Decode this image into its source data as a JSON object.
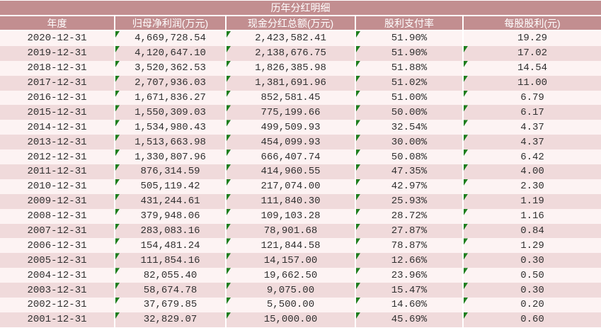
{
  "table": {
    "title": "历年分红明细",
    "columns": [
      {
        "label": "年度"
      },
      {
        "label": "归母净利润(万元)"
      },
      {
        "label": "现金分红总额(万元)"
      },
      {
        "label": "股利支付率"
      },
      {
        "label": "每股股利(元)"
      }
    ],
    "rows": [
      {
        "year": "2020-12-31",
        "net_profit": "4,669,728.54",
        "cash_dividend": "2,423,582.41",
        "payout_ratio": "51.90%",
        "dividend_per_share": "19.29",
        "markers": [
          true,
          true,
          true,
          false
        ]
      },
      {
        "year": "2019-12-31",
        "net_profit": "4,120,647.10",
        "cash_dividend": "2,138,676.75",
        "payout_ratio": "51.90%",
        "dividend_per_share": "17.02",
        "markers": [
          true,
          true,
          true,
          true
        ]
      },
      {
        "year": "2018-12-31",
        "net_profit": "3,520,362.53",
        "cash_dividend": "1,826,385.98",
        "payout_ratio": "51.88%",
        "dividend_per_share": "14.54",
        "markers": [
          true,
          true,
          true,
          true
        ]
      },
      {
        "year": "2017-12-31",
        "net_profit": "2,707,936.03",
        "cash_dividend": "1,381,691.96",
        "payout_ratio": "51.02%",
        "dividend_per_share": "11.00",
        "markers": [
          true,
          true,
          true,
          true
        ]
      },
      {
        "year": "2016-12-31",
        "net_profit": "1,671,836.27",
        "cash_dividend": "852,581.45",
        "payout_ratio": "51.00%",
        "dividend_per_share": "6.79",
        "markers": [
          true,
          true,
          true,
          true
        ]
      },
      {
        "year": "2015-12-31",
        "net_profit": "1,550,309.03",
        "cash_dividend": "775,199.66",
        "payout_ratio": "50.00%",
        "dividend_per_share": "6.17",
        "markers": [
          true,
          true,
          true,
          true
        ]
      },
      {
        "year": "2014-12-31",
        "net_profit": "1,534,980.43",
        "cash_dividend": "499,509.93",
        "payout_ratio": "32.54%",
        "dividend_per_share": "4.37",
        "markers": [
          true,
          true,
          true,
          true
        ]
      },
      {
        "year": "2013-12-31",
        "net_profit": "1,513,663.98",
        "cash_dividend": "454,099.93",
        "payout_ratio": "30.00%",
        "dividend_per_share": "4.37",
        "markers": [
          true,
          true,
          true,
          true
        ]
      },
      {
        "year": "2012-12-31",
        "net_profit": "1,330,807.96",
        "cash_dividend": "666,407.74",
        "payout_ratio": "50.08%",
        "dividend_per_share": "6.42",
        "markers": [
          true,
          true,
          true,
          true
        ]
      },
      {
        "year": "2011-12-31",
        "net_profit": "876,314.59",
        "cash_dividend": "414,960.55",
        "payout_ratio": "47.35%",
        "dividend_per_share": "4.00",
        "markers": [
          true,
          true,
          true,
          true
        ]
      },
      {
        "year": "2010-12-31",
        "net_profit": "505,119.42",
        "cash_dividend": "217,074.00",
        "payout_ratio": "42.97%",
        "dividend_per_share": "2.30",
        "markers": [
          true,
          true,
          true,
          true
        ]
      },
      {
        "year": "2009-12-31",
        "net_profit": "431,244.61",
        "cash_dividend": "111,840.30",
        "payout_ratio": "25.93%",
        "dividend_per_share": "1.19",
        "markers": [
          true,
          true,
          true,
          true
        ]
      },
      {
        "year": "2008-12-31",
        "net_profit": "379,948.06",
        "cash_dividend": "109,103.28",
        "payout_ratio": "28.72%",
        "dividend_per_share": "1.16",
        "markers": [
          true,
          true,
          true,
          true
        ]
      },
      {
        "year": "2007-12-31",
        "net_profit": "283,083.16",
        "cash_dividend": "78,901.68",
        "payout_ratio": "27.87%",
        "dividend_per_share": "0.84",
        "markers": [
          true,
          true,
          true,
          true
        ]
      },
      {
        "year": "2006-12-31",
        "net_profit": "154,481.24",
        "cash_dividend": "121,844.58",
        "payout_ratio": "78.87%",
        "dividend_per_share": "1.29",
        "markers": [
          true,
          true,
          true,
          true
        ]
      },
      {
        "year": "2005-12-31",
        "net_profit": "111,854.16",
        "cash_dividend": "14,157.00",
        "payout_ratio": "12.66%",
        "dividend_per_share": "0.30",
        "markers": [
          true,
          true,
          true,
          true
        ]
      },
      {
        "year": "2004-12-31",
        "net_profit": "82,055.40",
        "cash_dividend": "19,662.50",
        "payout_ratio": "23.96%",
        "dividend_per_share": "0.50",
        "markers": [
          true,
          true,
          true,
          true
        ]
      },
      {
        "year": "2003-12-31",
        "net_profit": "58,674.78",
        "cash_dividend": "9,075.00",
        "payout_ratio": "15.47%",
        "dividend_per_share": "0.30",
        "markers": [
          true,
          true,
          true,
          true
        ]
      },
      {
        "year": "2002-12-31",
        "net_profit": "37,679.85",
        "cash_dividend": "5,500.00",
        "payout_ratio": "14.60%",
        "dividend_per_share": "0.20",
        "markers": [
          true,
          true,
          true,
          true
        ]
      },
      {
        "year": "2001-12-31",
        "net_profit": "32,829.07",
        "cash_dividend": "15,000.00",
        "payout_ratio": "45.69%",
        "dividend_per_share": "0.60",
        "markers": [
          true,
          true,
          true,
          true
        ]
      }
    ]
  },
  "colors": {
    "header_bg": "#c28e90",
    "header_text": "#ffffff",
    "row_light": "#fdf3f3",
    "row_dark": "#f0dadb",
    "body_text": "#303030",
    "marker_green": "#1e7e1e",
    "separator": "#ffffff"
  }
}
